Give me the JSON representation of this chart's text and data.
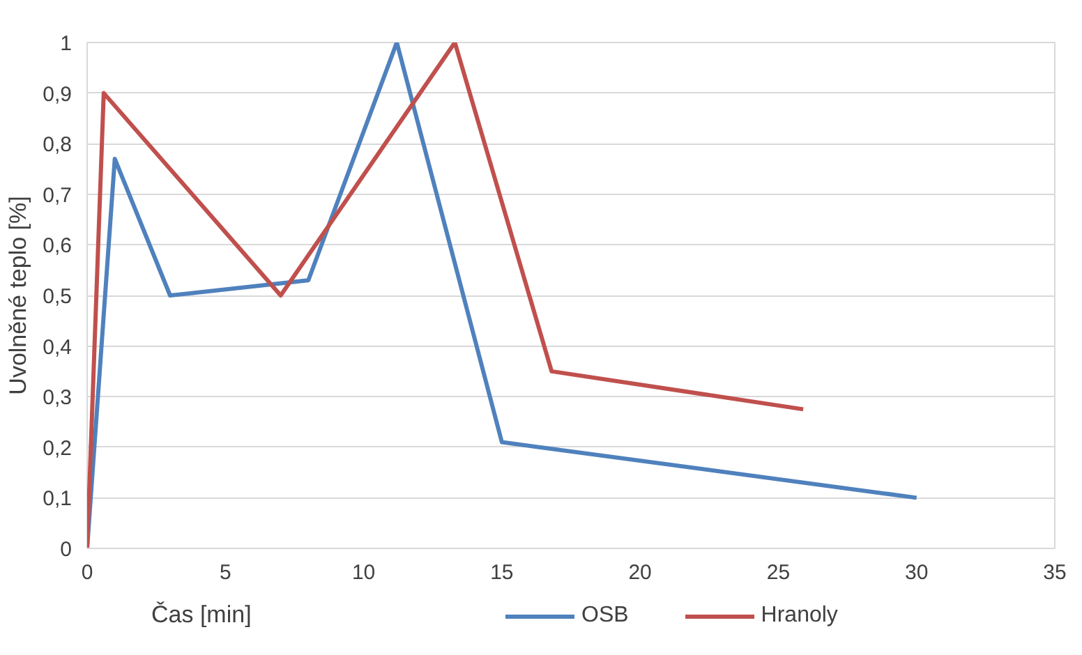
{
  "chart_data": {
    "type": "line",
    "xlabel": "Čas [min]",
    "ylabel": "Uvolněné teplo [%]",
    "xlim": [
      0,
      35
    ],
    "xticks": [
      0,
      5,
      10,
      15,
      20,
      25,
      30,
      35
    ],
    "ylim": [
      0,
      1
    ],
    "yticks": [
      0,
      {
        "value": 0.1,
        "label": "0,1"
      },
      {
        "value": 0.2,
        "label": "0,2"
      },
      {
        "value": 0.3,
        "label": "0,3"
      },
      {
        "value": 0.4,
        "label": "0,4"
      },
      {
        "value": 0.5,
        "label": "0,5"
      },
      {
        "value": 0.6,
        "label": "0,6"
      },
      {
        "value": 0.7,
        "label": "0,7"
      },
      {
        "value": 0.8,
        "label": "0,8"
      },
      {
        "value": 0.9,
        "label": "0,9"
      },
      1
    ],
    "grid": "y",
    "legend": "bottom",
    "marker": "none",
    "line_style": "solid",
    "series": [
      {
        "name": "OSB",
        "color": "#4f81bd",
        "x": [
          0,
          1,
          3,
          8,
          11.2,
          15,
          30
        ],
        "values": [
          0,
          0.77,
          0.5,
          0.53,
          1,
          0.21,
          0.1
        ]
      },
      {
        "name": "Hranoly",
        "color": "#c0504d",
        "x": [
          0,
          0.6,
          7,
          13.3,
          16.8,
          25.9
        ],
        "values": [
          0,
          0.9,
          0.5,
          1,
          0.35,
          0.275
        ]
      }
    ]
  }
}
